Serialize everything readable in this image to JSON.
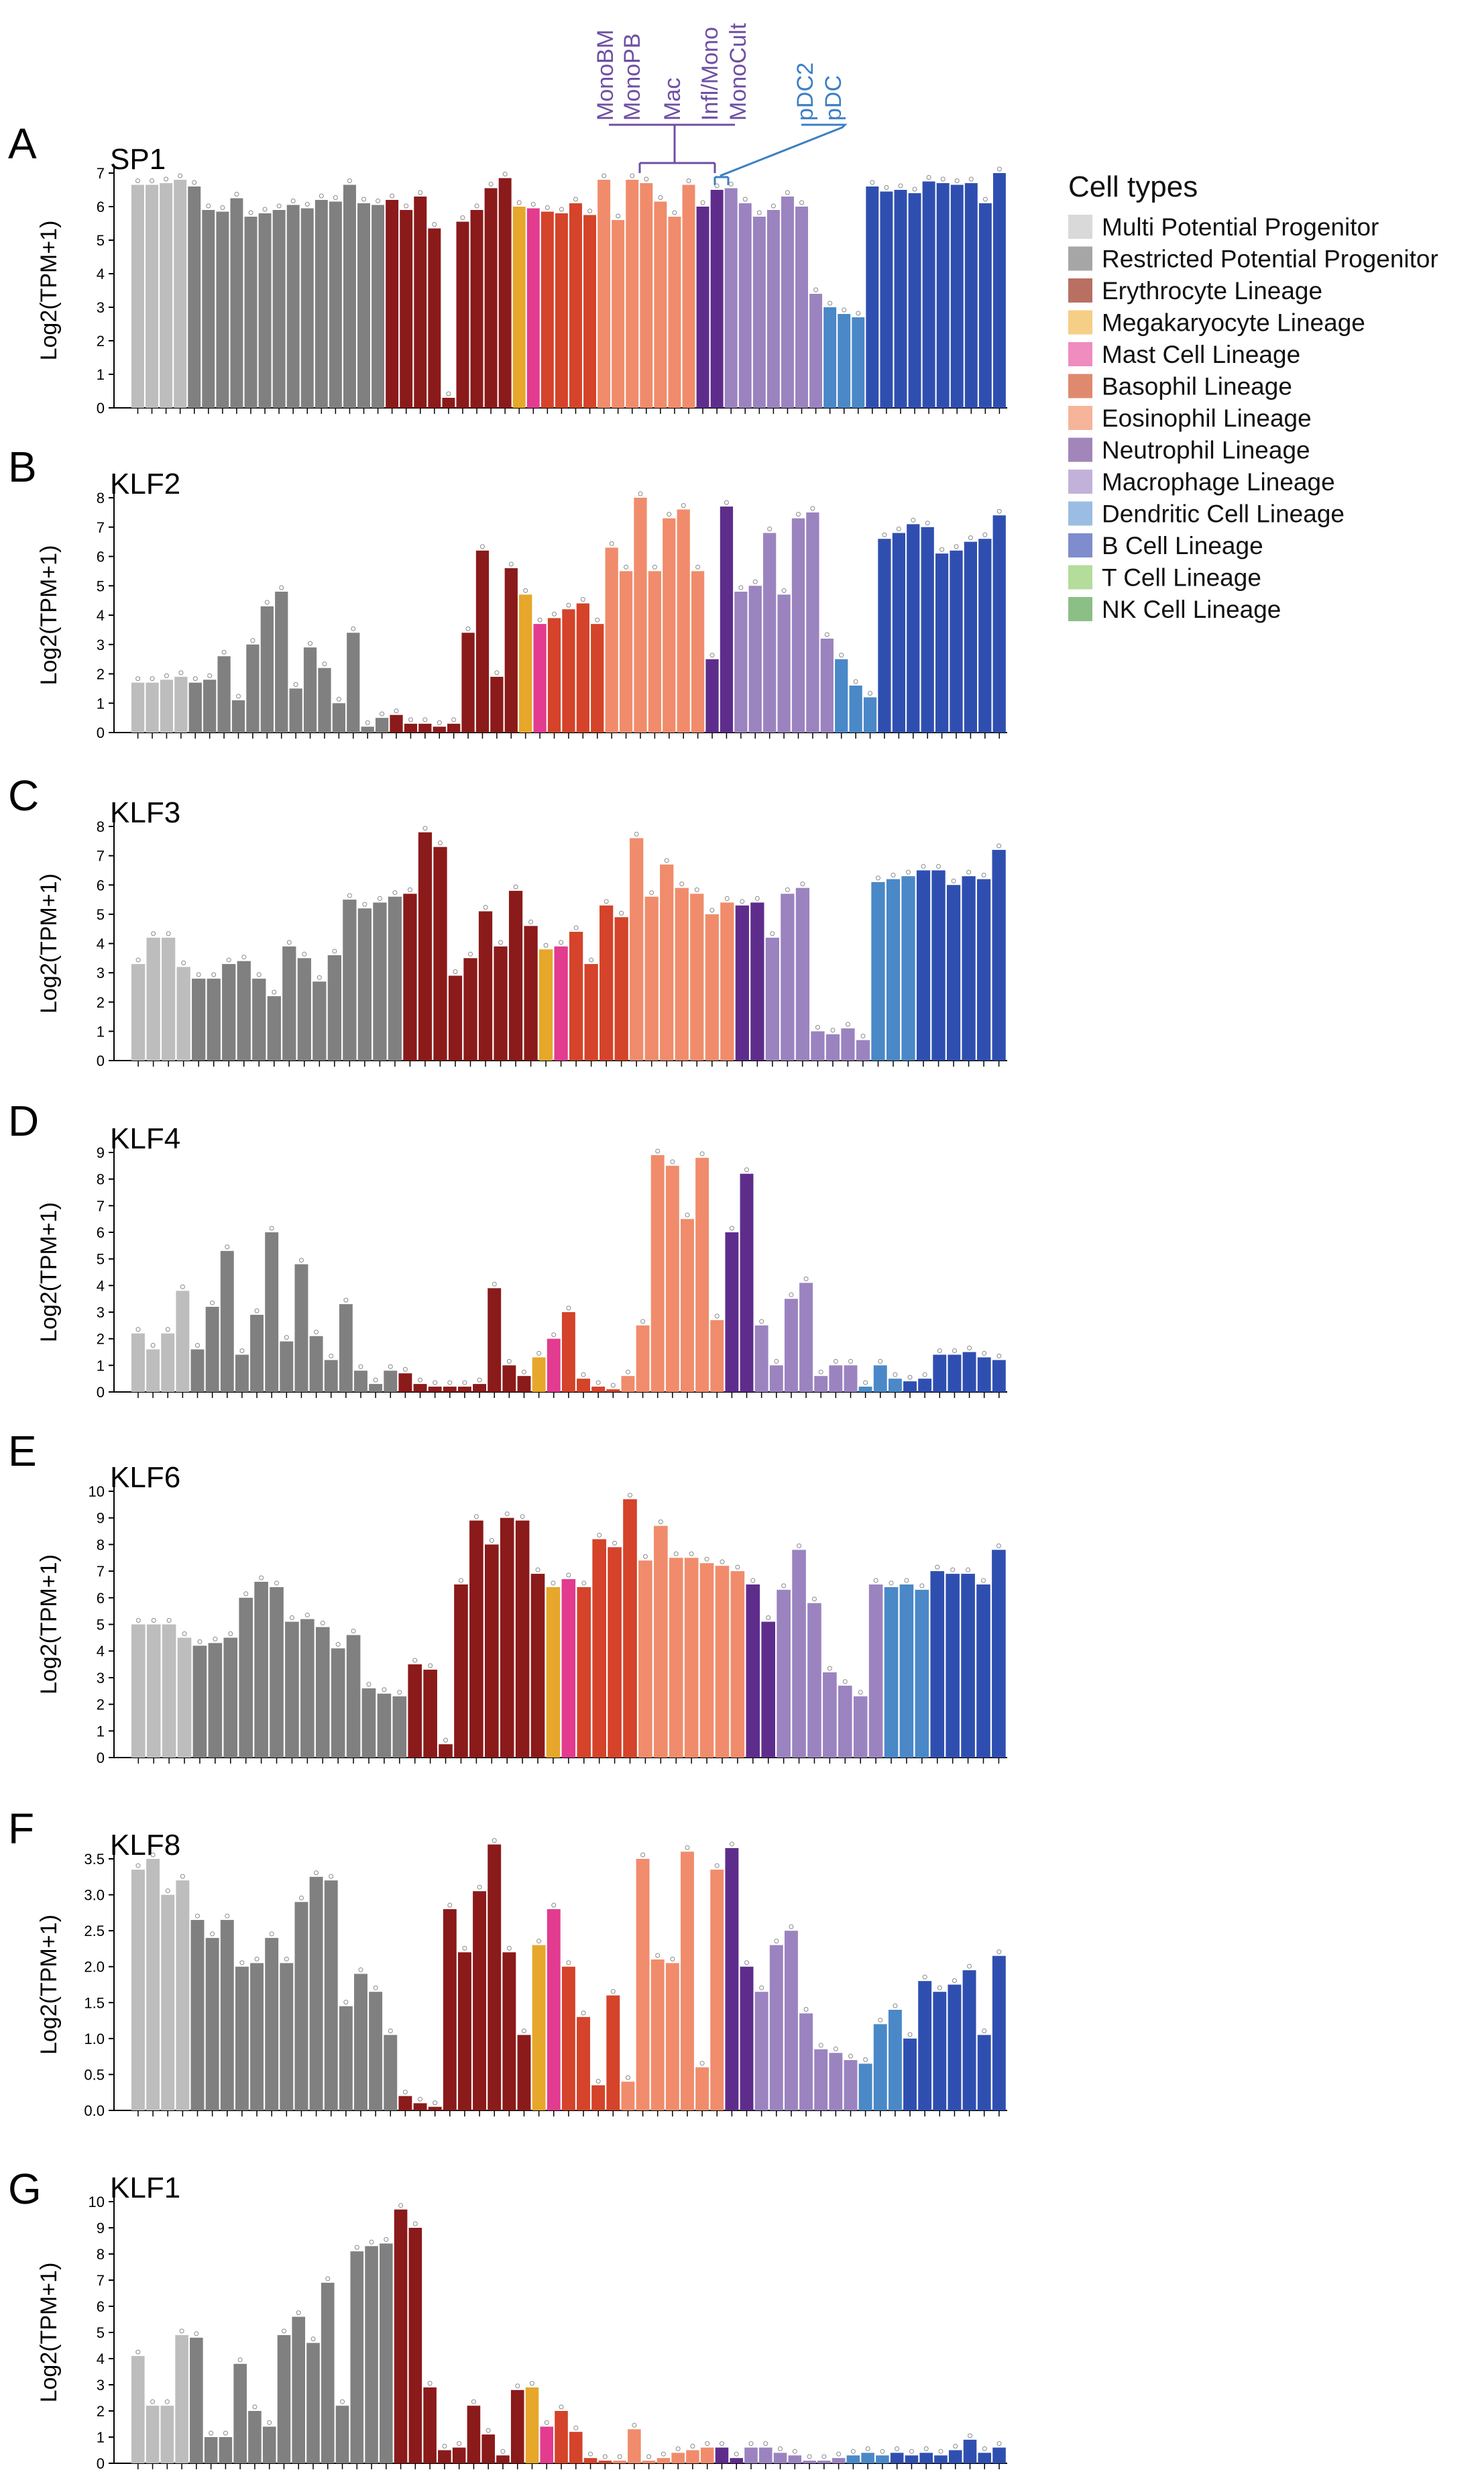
{
  "legend": {
    "title": "Cell types",
    "items": [
      {
        "label": "Multi Potential Progenitor",
        "color": "#d9d9d9"
      },
      {
        "label": "Restricted Potential Progenitor",
        "color": "#a6a6a6"
      },
      {
        "label": "Erythrocyte Lineage",
        "color": "#b87063"
      },
      {
        "label": "Megakaryocyte Lineage",
        "color": "#f5cf85"
      },
      {
        "label": "Mast Cell Lineage",
        "color": "#ef8cc0"
      },
      {
        "label": "Basophil Lineage",
        "color": "#df8a6e"
      },
      {
        "label": "Eosinophil Lineage",
        "color": "#f6b49a"
      },
      {
        "label": "Neutrophil Lineage",
        "color": "#a286b9"
      },
      {
        "label": "Macrophage Lineage",
        "color": "#c2b2da"
      },
      {
        "label": "Dendritic Cell Lineage",
        "color": "#9bbde3"
      },
      {
        "label": "B Cell Lineage",
        "color": "#7f8ccd"
      },
      {
        "label": "T Cell Lineage",
        "color": "#b4dc9a"
      },
      {
        "label": "NK Cell Lineage",
        "color": "#8bbf86"
      }
    ]
  },
  "bar_colors": [
    "#bdbdbd",
    "#bdbdbd",
    "#bdbdbd",
    "#bdbdbd",
    "#808080",
    "#808080",
    "#808080",
    "#808080",
    "#808080",
    "#808080",
    "#808080",
    "#808080",
    "#808080",
    "#808080",
    "#808080",
    "#808080",
    "#808080",
    "#808080",
    "#8b1a1a",
    "#8b1a1a",
    "#8b1a1a",
    "#8b1a1a",
    "#8b1a1a",
    "#8b1a1a",
    "#8b1a1a",
    "#8b1a1a",
    "#8b1a1a",
    "#e6a72a",
    "#e23b8f",
    "#d4432a",
    "#d4432a",
    "#d4432a",
    "#d4432a",
    "#f08c6c",
    "#f08c6c",
    "#f08c6c",
    "#f08c6c",
    "#f08c6c",
    "#f08c6c",
    "#f08c6c",
    "#5e2d8c",
    "#5e2d8c",
    "#9b83c0",
    "#9b83c0",
    "#9b83c0",
    "#9b83c0",
    "#9b83c0",
    "#9b83c0",
    "#9b83c0",
    "#4a88c7",
    "#4a88c7",
    "#4a88c7",
    "#2f4fb0",
    "#2f4fb0",
    "#2f4fb0",
    "#2f4fb0",
    "#2f4fb0",
    "#2f4fb0",
    "#2f4fb0",
    "#2f4fb0",
    "#2f4fb0",
    "#2f4fb0",
    "#2f4fb0",
    "#2f4fb0",
    "#2f4fb0",
    "#2f4fb0",
    "#6cc04a",
    "#6cc04a",
    "#6cc04a",
    "#6cc04a",
    "#6cc04a",
    "#6cc04a",
    "#6cc04a",
    "#6cc04a",
    "#6cc04a",
    "#6cc04a",
    "#6cc04a",
    "#1f8a3c"
  ],
  "annotations": {
    "purple": {
      "labels": [
        "MonoBM",
        "MonoPB",
        "Mac",
        "Infl/Mono",
        "MonoCult"
      ],
      "color": "#6f4fa3"
    },
    "blue": {
      "labels": [
        "pDC2",
        "pDC"
      ],
      "color": "#3b7fc4"
    }
  },
  "chart_data": [
    {
      "type": "bar",
      "panel": "A",
      "title": "SP1",
      "ylabel": "Log2(TPM+1)",
      "ylim": [
        0,
        7
      ],
      "yticks": [
        "0",
        "1",
        "2",
        "3",
        "4",
        "5",
        "6",
        "7"
      ],
      "values": [
        6.65,
        6.65,
        6.7,
        6.8,
        6.6,
        5.9,
        5.85,
        6.25,
        5.7,
        5.8,
        5.9,
        6.05,
        5.95,
        6.2,
        6.15,
        6.65,
        6.1,
        6.05,
        6.2,
        5.9,
        6.3,
        5.35,
        0.3,
        5.55,
        5.9,
        6.55,
        6.85,
        6.0,
        5.95,
        5.85,
        5.8,
        6.1,
        5.75,
        6.8,
        5.6,
        6.8,
        6.7,
        6.15,
        5.7,
        6.65,
        6.0,
        6.5,
        6.55,
        6.1,
        5.7,
        5.9,
        6.3,
        6.0,
        3.4,
        3.0,
        2.8,
        2.7,
        6.6,
        6.45,
        6.5,
        6.4,
        6.75,
        6.7,
        6.65,
        6.7,
        6.1,
        7.0
      ]
    },
    {
      "type": "bar",
      "panel": "B",
      "title": "KLF2",
      "ylabel": "Log2(TPM+1)",
      "ylim": [
        0,
        8
      ],
      "yticks": [
        "0",
        "1",
        "2",
        "3",
        "4",
        "5",
        "6",
        "7",
        "8"
      ],
      "values": [
        1.7,
        1.7,
        1.8,
        1.9,
        1.7,
        1.8,
        2.6,
        1.1,
        3.0,
        4.3,
        4.8,
        1.5,
        2.9,
        2.2,
        1.0,
        3.4,
        0.2,
        0.5,
        0.6,
        0.3,
        0.3,
        0.2,
        0.3,
        3.4,
        6.2,
        1.9,
        5.6,
        4.7,
        3.7,
        3.9,
        4.2,
        4.4,
        3.7,
        6.3,
        5.5,
        8.0,
        5.5,
        7.3,
        7.6,
        5.5,
        2.5,
        7.7,
        4.8,
        5.0,
        6.8,
        4.7,
        7.3,
        7.5,
        3.2,
        2.5,
        1.6,
        1.2,
        6.6,
        6.8,
        7.1,
        7.0,
        6.1,
        6.2,
        6.5,
        6.6,
        7.4
      ]
    },
    {
      "type": "bar",
      "panel": "C",
      "title": "KLF3",
      "ylabel": "Log2(TPM+1)",
      "ylim": [
        0,
        8
      ],
      "yticks": [
        "0",
        "1",
        "2",
        "3",
        "4",
        "5",
        "6",
        "7",
        "8"
      ],
      "values": [
        3.3,
        4.2,
        4.2,
        3.2,
        2.8,
        2.8,
        3.3,
        3.4,
        2.8,
        2.2,
        3.9,
        3.5,
        2.7,
        3.6,
        5.5,
        5.2,
        5.4,
        5.6,
        5.7,
        7.8,
        7.3,
        2.9,
        3.5,
        5.1,
        3.9,
        5.8,
        4.6,
        3.8,
        3.9,
        4.4,
        3.3,
        5.3,
        4.9,
        7.6,
        5.6,
        6.7,
        5.9,
        5.7,
        5.0,
        5.4,
        5.3,
        5.4,
        4.2,
        5.7,
        5.9,
        1.0,
        0.9,
        1.1,
        0.7,
        6.1,
        6.2,
        6.3,
        6.5,
        6.5,
        6.0,
        6.3,
        6.2,
        7.2
      ]
    },
    {
      "type": "bar",
      "panel": "D",
      "title": "KLF4",
      "ylabel": "Log2(TPM+1)",
      "ylim": [
        0,
        9
      ],
      "yticks": [
        "0",
        "1",
        "2",
        "3",
        "4",
        "5",
        "6",
        "7",
        "8",
        "9"
      ],
      "values": [
        2.2,
        1.6,
        2.2,
        3.8,
        1.6,
        3.2,
        5.3,
        1.4,
        2.9,
        6.0,
        1.9,
        4.8,
        2.1,
        1.2,
        3.3,
        0.8,
        0.3,
        0.8,
        0.7,
        0.3,
        0.2,
        0.2,
        0.2,
        0.3,
        3.9,
        1.0,
        0.6,
        1.3,
        2.0,
        3.0,
        0.5,
        0.2,
        0.1,
        0.6,
        2.5,
        8.9,
        8.5,
        6.5,
        8.8,
        2.7,
        6.0,
        8.2,
        2.5,
        1.0,
        3.5,
        4.1,
        0.6,
        1.0,
        1.0,
        0.2,
        1.0,
        0.5,
        0.4,
        0.5,
        1.4,
        1.4,
        1.5,
        1.3,
        1.2
      ]
    },
    {
      "type": "bar",
      "panel": "E",
      "title": "KLF6",
      "ylabel": "Log2(TPM+1)",
      "ylim": [
        0,
        10
      ],
      "yticks": [
        "0",
        "1",
        "2",
        "3",
        "4",
        "5",
        "6",
        "7",
        "8",
        "9",
        "10"
      ],
      "values": [
        5.0,
        5.0,
        5.0,
        4.5,
        4.2,
        4.3,
        4.5,
        6.0,
        6.6,
        6.4,
        5.1,
        5.2,
        4.9,
        4.1,
        4.6,
        2.6,
        2.4,
        2.3,
        3.5,
        3.3,
        0.5,
        6.5,
        8.9,
        8.0,
        9.0,
        8.9,
        6.9,
        6.4,
        6.7,
        6.4,
        8.2,
        7.9,
        9.7,
        7.4,
        8.7,
        7.5,
        7.5,
        7.3,
        7.2,
        7.0,
        6.5,
        5.1,
        6.3,
        7.8,
        5.8,
        3.2,
        2.7,
        2.3,
        6.5,
        6.4,
        6.5,
        6.3,
        7.0,
        6.9,
        6.9,
        6.5,
        7.8
      ]
    },
    {
      "type": "bar",
      "panel": "F",
      "title": "KLF8",
      "ylabel": "Log2(TPM+1)",
      "ylim": [
        0,
        3.5
      ],
      "yticks": [
        "0.0",
        "0.5",
        "1.0",
        "1.5",
        "2.0",
        "2.5",
        "3.0",
        "3.5"
      ],
      "values": [
        3.35,
        3.5,
        3.0,
        3.2,
        2.65,
        2.4,
        2.65,
        2.0,
        2.05,
        2.4,
        2.05,
        2.9,
        3.25,
        3.2,
        1.45,
        1.9,
        1.65,
        1.05,
        0.2,
        0.1,
        0.05,
        2.8,
        2.2,
        3.05,
        3.7,
        2.2,
        1.05,
        2.3,
        2.8,
        2.0,
        1.3,
        0.35,
        1.6,
        0.4,
        3.5,
        2.1,
        2.05,
        3.6,
        0.6,
        3.35,
        3.65,
        2.0,
        1.65,
        2.3,
        2.5,
        1.35,
        0.85,
        0.8,
        0.7,
        0.65,
        1.2,
        1.4,
        1.0,
        1.8,
        1.65,
        1.75,
        1.95,
        1.05,
        2.15
      ]
    },
    {
      "type": "bar",
      "panel": "G",
      "title": "KLF1",
      "ylabel": "Log2(TPM+1)",
      "ylim": [
        0,
        10
      ],
      "yticks": [
        "0",
        "1",
        "2",
        "3",
        "4",
        "5",
        "6",
        "7",
        "8",
        "9",
        "10"
      ],
      "values": [
        4.1,
        2.2,
        2.2,
        4.9,
        4.8,
        1.0,
        1.0,
        3.8,
        2.0,
        1.4,
        4.9,
        5.6,
        4.6,
        6.9,
        2.2,
        8.1,
        8.3,
        8.4,
        9.7,
        9.0,
        2.9,
        0.5,
        0.6,
        2.2,
        1.1,
        0.3,
        2.8,
        2.9,
        1.4,
        2.0,
        1.2,
        0.2,
        0.1,
        0.1,
        1.3,
        0.1,
        0.2,
        0.4,
        0.5,
        0.6,
        0.6,
        0.2,
        0.6,
        0.6,
        0.4,
        0.3,
        0.1,
        0.1,
        0.2,
        0.3,
        0.4,
        0.3,
        0.4,
        0.3,
        0.4,
        0.3,
        0.5,
        0.9,
        0.4,
        0.6
      ]
    }
  ]
}
